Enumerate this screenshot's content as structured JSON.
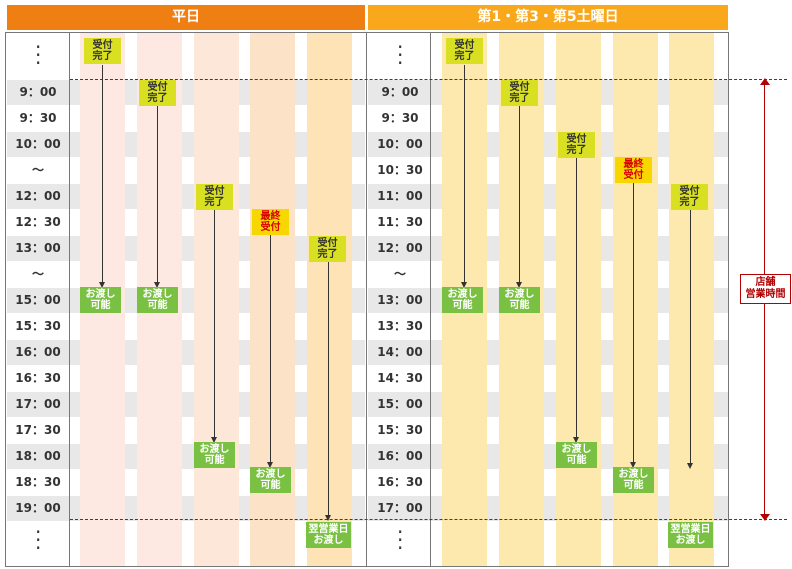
{
  "headers": {
    "weekday": "平日",
    "saturday": "第1・第3・第5土曜日"
  },
  "left_times": [
    "9：00",
    "9：30",
    "10：00",
    "～",
    "12：00",
    "12：30",
    "13：00",
    "～",
    "15：00",
    "15：30",
    "16：00",
    "16：30",
    "17：00",
    "17：30",
    "18：00",
    "18：30",
    "19：00"
  ],
  "right_times": [
    "9：00",
    "9：30",
    "10：00",
    "10：30",
    "11：00",
    "11：30",
    "12：00",
    "～",
    "13：00",
    "13：30",
    "14：00",
    "14：30",
    "15：00",
    "15：30",
    "16：00",
    "16：30",
    "17：00"
  ],
  "labels": {
    "reception_done_1": "受付",
    "reception_done_2": "完了",
    "final_reception_1": "最終",
    "final_reception_2": "受付",
    "handover_1": "お渡し",
    "handover_2": "可能",
    "next_day_1": "翌営業日",
    "next_day_2": "お渡し"
  },
  "store_hours_label_1": "店舗",
  "store_hours_label_2": "営業時間",
  "colors": {
    "header_weekday": "#ef7f12",
    "header_saturday": "#f9a81c",
    "done": "#d9e021",
    "final": "#f8d700",
    "ready": "#7ac143",
    "bracket": "#b30000"
  }
}
